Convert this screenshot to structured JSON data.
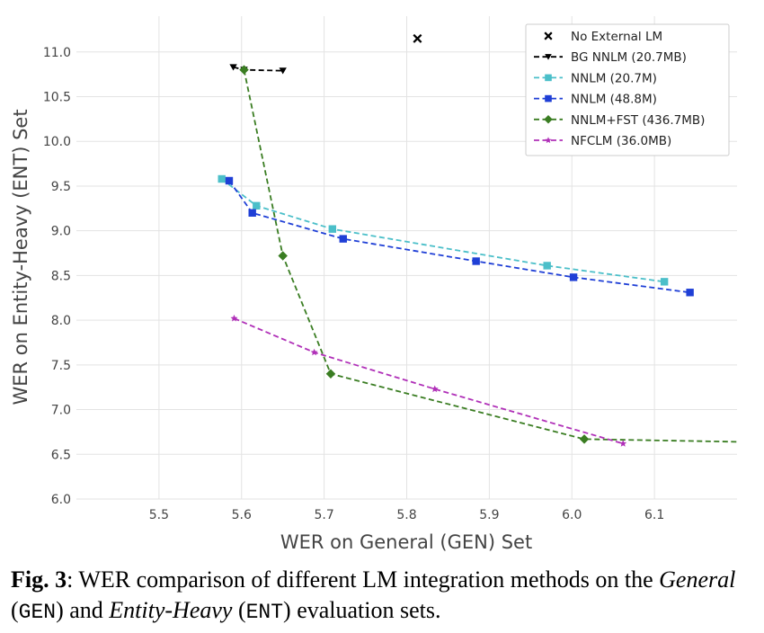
{
  "chart_data": {
    "type": "line",
    "title": "",
    "xlabel": "WER on General (GEN) Set",
    "ylabel": "WER on Entity-Heavy (ENT) Set",
    "xlim": [
      5.4,
      6.2
    ],
    "ylim": [
      6.0,
      11.4
    ],
    "x_ticks": [
      "5.5",
      "5.6",
      "5.7",
      "5.8",
      "5.9",
      "6.0",
      "6.1"
    ],
    "y_ticks": [
      "6.0",
      "6.5",
      "7.0",
      "7.5",
      "8.0",
      "8.5",
      "9.0",
      "9.5",
      "10.0",
      "10.5",
      "11.0"
    ],
    "grid": true,
    "legend_position": "top-right",
    "series": [
      {
        "name": "No External LM",
        "color": "#000000",
        "marker": "x",
        "line": false,
        "points": [
          [
            5.813,
            11.15
          ]
        ]
      },
      {
        "name": "BG NNLM (20.7MB)",
        "color": "#000000",
        "marker": "triangle-down",
        "line": true,
        "points": [
          [
            5.59,
            10.83
          ],
          [
            5.603,
            10.8
          ],
          [
            5.65,
            10.79
          ]
        ]
      },
      {
        "name": "NNLM (20.7M)",
        "color": "#4bbfc9",
        "marker": "square",
        "line": true,
        "points": [
          [
            5.576,
            9.58
          ],
          [
            5.618,
            9.28
          ],
          [
            5.71,
            9.02
          ],
          [
            5.97,
            8.61
          ],
          [
            6.112,
            8.43
          ]
        ]
      },
      {
        "name": "NNLM (48.8M)",
        "color": "#1f3fd6",
        "marker": "square",
        "line": true,
        "points": [
          [
            5.585,
            9.56
          ],
          [
            5.613,
            9.2
          ],
          [
            5.723,
            8.91
          ],
          [
            5.884,
            8.66
          ],
          [
            6.002,
            8.48
          ],
          [
            6.143,
            8.31
          ]
        ]
      },
      {
        "name": "NNLM+FST (436.7MB)",
        "color": "#3a7d22",
        "marker": "diamond",
        "line": true,
        "points": [
          [
            5.603,
            10.8
          ],
          [
            5.65,
            8.72
          ],
          [
            5.708,
            7.4
          ],
          [
            6.015,
            6.67
          ],
          [
            6.2,
            6.64
          ]
        ]
      },
      {
        "name": "NFCLM (36.0MB)",
        "color": "#b030b8",
        "marker": "star",
        "line": true,
        "points": [
          [
            5.591,
            8.02
          ],
          [
            5.688,
            7.64
          ],
          [
            5.834,
            7.23
          ],
          [
            6.062,
            6.62
          ]
        ]
      }
    ]
  },
  "caption": {
    "fig_label": "Fig. 3",
    "text_1": ": WER comparison of different LM integration methods on the ",
    "general": "General",
    "gen_code": "GEN",
    "and": ") and ",
    "entity_heavy": "Entity-Heavy",
    "ent_code": "ENT",
    "text_end": ") evaluation sets."
  }
}
